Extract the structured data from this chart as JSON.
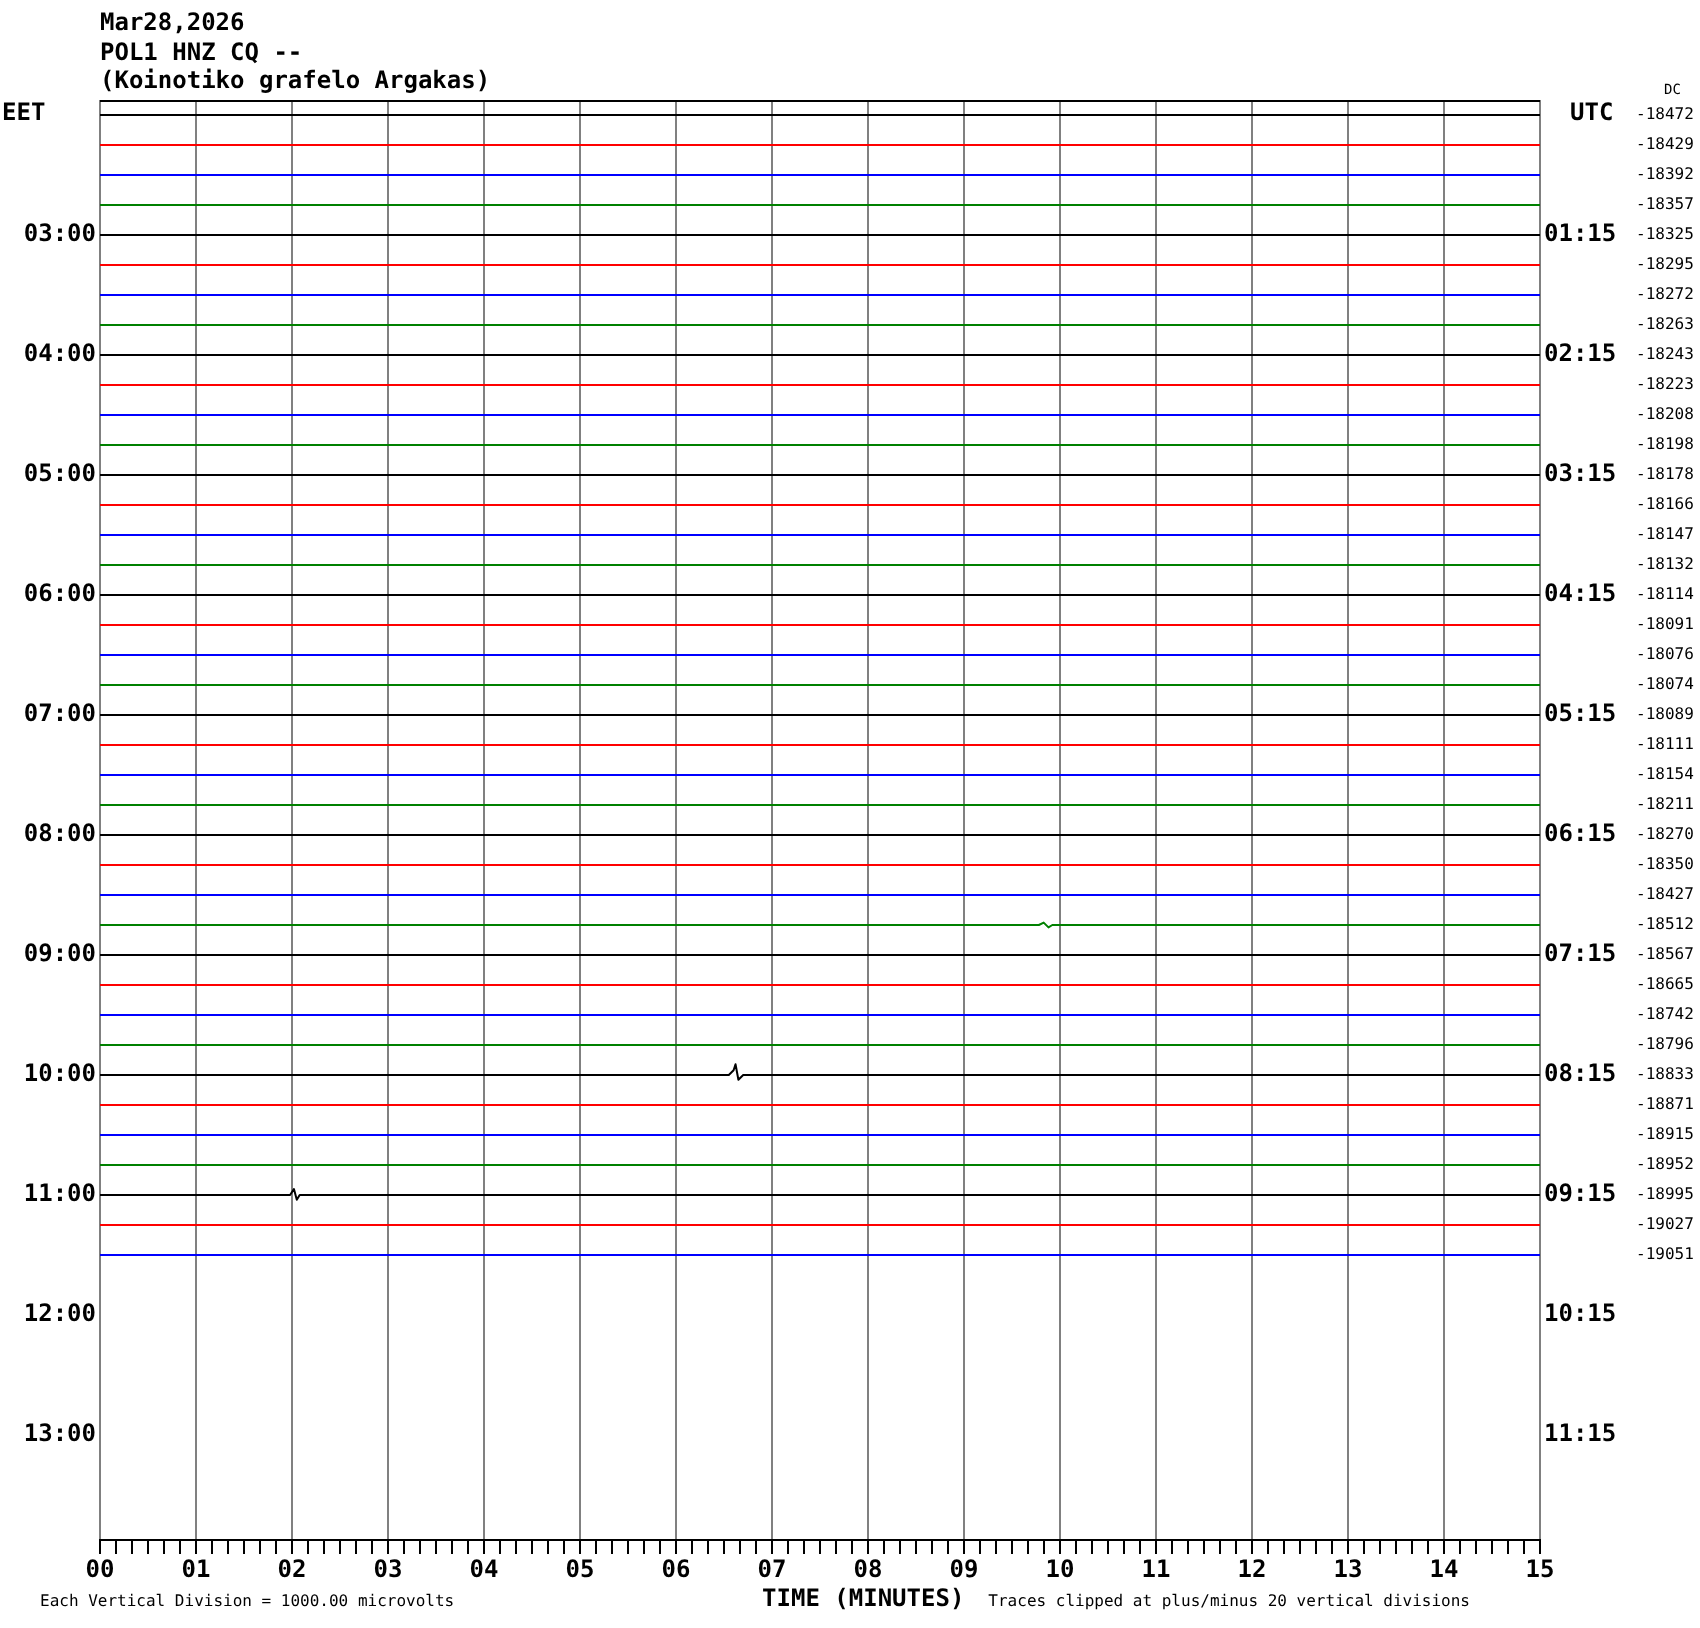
{
  "chart_data": {
    "type": "line",
    "title": "Mar28,2026",
    "subtitle": "POL1 HNZ CQ --\n(Koinotiko grafelo Argakas)",
    "xlabel": "TIME (MINUTES)",
    "ylabel": "EET",
    "y2label": "UTC",
    "annotations": [
      "Each Vertical Division = 1000.00 microvolts",
      "Traces clipped at plus/minus 20 vertical divisions",
      "DC",
      "-18472",
      "-18429",
      "-18392",
      "-18357",
      "-18325",
      "-18295",
      "-18272",
      "-18263",
      "-18243",
      "-18223",
      "-18208",
      "-18198",
      "-18178",
      "-18166",
      "-18147",
      "-18132",
      "-18114",
      "-18091",
      "-18076",
      "-18074",
      "-18089",
      "-18111",
      "-18154",
      "-18211",
      "-18270",
      "-18350",
      "-18427",
      "-18512",
      "-18567",
      "-18665",
      "-18742",
      "-18796",
      "-18833",
      "-18871",
      "-18915",
      "-18952",
      "-18995",
      "-19027",
      "-19051"
    ],
    "xlim": [
      0,
      15
    ],
    "xticks": [
      {
        "value": 0,
        "label": "00"
      },
      {
        "value": 0.167,
        "label": null
      },
      {
        "value": 0.333,
        "label": null
      },
      {
        "value": 0.5,
        "label": null
      },
      {
        "value": 0.667,
        "label": null
      },
      {
        "value": 0.833,
        "label": null
      },
      {
        "value": 1,
        "label": "01"
      },
      {
        "value": 1.167,
        "label": null
      },
      {
        "value": 1.333,
        "label": null
      },
      {
        "value": 1.5,
        "label": null
      },
      {
        "value": 1.667,
        "label": null
      },
      {
        "value": 1.833,
        "label": null
      },
      {
        "value": 2,
        "label": "02"
      },
      {
        "value": 2.167,
        "label": null
      },
      {
        "value": 2.333,
        "label": null
      },
      {
        "value": 2.5,
        "label": null
      },
      {
        "value": 2.667,
        "label": null
      },
      {
        "value": 2.833,
        "label": null
      },
      {
        "value": 3,
        "label": "03"
      },
      {
        "value": 3.167,
        "label": null
      },
      {
        "value": 3.333,
        "label": null
      },
      {
        "value": 3.5,
        "label": null
      },
      {
        "value": 3.667,
        "label": null
      },
      {
        "value": 3.833,
        "label": null
      },
      {
        "value": 4,
        "label": "04"
      },
      {
        "value": 4.167,
        "label": null
      },
      {
        "value": 4.333,
        "label": null
      },
      {
        "value": 4.5,
        "label": null
      },
      {
        "value": 4.667,
        "label": null
      },
      {
        "value": 4.833,
        "label": null
      },
      {
        "value": 5,
        "label": "05"
      },
      {
        "value": 5.167,
        "label": null
      },
      {
        "value": 5.333,
        "label": null
      },
      {
        "value": 5.5,
        "label": null
      },
      {
        "value": 5.667,
        "label": null
      },
      {
        "value": 5.833,
        "label": null
      },
      {
        "value": 6,
        "label": "06"
      },
      {
        "value": 6.167,
        "label": null
      },
      {
        "value": 6.333,
        "label": null
      },
      {
        "value": 6.5,
        "label": null
      },
      {
        "value": 6.667,
        "label": null
      },
      {
        "value": 6.833,
        "label": null
      },
      {
        "value": 7,
        "label": "07"
      },
      {
        "value": 7.167,
        "label": null
      },
      {
        "value": 7.333,
        "label": null
      },
      {
        "value": 7.5,
        "label": null
      },
      {
        "value": 7.667,
        "label": null
      },
      {
        "value": 7.833,
        "label": null
      },
      {
        "value": 8,
        "label": "08"
      },
      {
        "value": 8.167,
        "label": null
      },
      {
        "value": 8.333,
        "label": null
      },
      {
        "value": 8.5,
        "label": null
      },
      {
        "value": 8.667,
        "label": null
      },
      {
        "value": 8.833,
        "label": null
      },
      {
        "value": 9,
        "label": "09"
      },
      {
        "value": 9.167,
        "label": null
      },
      {
        "value": 9.333,
        "label": null
      },
      {
        "value": 9.5,
        "label": null
      },
      {
        "value": 9.667,
        "label": null
      },
      {
        "value": 9.833,
        "label": null
      },
      {
        "value": 10,
        "label": "10"
      },
      {
        "value": 10.167,
        "label": null
      },
      {
        "value": 10.333,
        "label": null
      },
      {
        "value": 10.5,
        "label": null
      },
      {
        "value": 10.667,
        "label": null
      },
      {
        "value": 10.833,
        "label": null
      },
      {
        "value": 11,
        "label": "11"
      },
      {
        "value": 11.167,
        "label": null
      },
      {
        "value": 11.333,
        "label": null
      },
      {
        "value": 11.5,
        "label": null
      },
      {
        "value": 11.667,
        "label": null
      },
      {
        "value": 11.833,
        "label": null
      },
      {
        "value": 12,
        "label": "12"
      },
      {
        "value": 12.167,
        "label": null
      },
      {
        "value": 12.333,
        "label": null
      },
      {
        "value": 12.5,
        "label": null
      },
      {
        "value": 12.667,
        "label": null
      },
      {
        "value": 12.833,
        "label": null
      },
      {
        "value": 13,
        "label": "13"
      },
      {
        "value": 13.167,
        "label": null
      },
      {
        "value": 13.333,
        "label": null
      },
      {
        "value": 13.5,
        "label": null
      },
      {
        "value": 13.667,
        "label": null
      },
      {
        "value": 13.833,
        "label": null
      },
      {
        "value": 14,
        "label": "14"
      },
      {
        "value": 14.167,
        "label": null
      },
      {
        "value": 14.333,
        "label": null
      },
      {
        "value": 14.5,
        "label": null
      },
      {
        "value": 14.667,
        "label": null
      },
      {
        "value": 14.833,
        "label": null
      },
      {
        "value": 15,
        "label": "15"
      }
    ],
    "ylim": [
      13.875,
      1.875
    ],
    "yticks": [
      {
        "value": 3,
        "label": "03:00"
      },
      {
        "value": 4,
        "label": "04:00"
      },
      {
        "value": 5,
        "label": "05:00"
      },
      {
        "value": 6,
        "label": "06:00"
      },
      {
        "value": 7,
        "label": "07:00"
      },
      {
        "value": 8,
        "label": "08:00"
      },
      {
        "value": 9,
        "label": "09:00"
      },
      {
        "value": 10,
        "label": "10:00"
      },
      {
        "value": 11,
        "label": "11:00"
      },
      {
        "value": 12,
        "label": "12:00"
      },
      {
        "value": 13,
        "label": "13:00"
      }
    ],
    "y2lim": [
      12.125,
      0.125
    ],
    "y2ticks": [
      {
        "value": 1.25,
        "label": "01:15"
      },
      {
        "value": 2.25,
        "label": "02:15"
      },
      {
        "value": 3.25,
        "label": "03:15"
      },
      {
        "value": 4.25,
        "label": "04:15"
      },
      {
        "value": 5.25,
        "label": "05:15"
      },
      {
        "value": 6.25,
        "label": "06:15"
      },
      {
        "value": 7.25,
        "label": "07:15"
      },
      {
        "value": 8.25,
        "label": "08:15"
      },
      {
        "value": 9.25,
        "label": "09:15"
      },
      {
        "value": 10.25,
        "label": "10:15"
      },
      {
        "value": 11.25,
        "label": "11:15"
      }
    ],
    "grid": "x",
    "series": [
      {
        "color": "#000000",
        "x": [
          0,
          15
        ],
        "values": [
          2,
          2
        ]
      },
      {
        "color": "#ff0000",
        "x": [
          0,
          15
        ],
        "values": [
          2.25,
          2.25
        ]
      },
      {
        "color": "#0000ff",
        "x": [
          0,
          15
        ],
        "values": [
          2.5,
          2.5
        ]
      },
      {
        "color": "#008000",
        "x": [
          0,
          15
        ],
        "values": [
          2.75,
          2.75
        ]
      },
      {
        "color": "#000000",
        "x": [
          0,
          15
        ],
        "values": [
          3,
          3
        ]
      },
      {
        "color": "#ff0000",
        "x": [
          0,
          15
        ],
        "values": [
          3.25,
          3.25
        ]
      },
      {
        "color": "#0000ff",
        "x": [
          0,
          15
        ],
        "values": [
          3.5,
          3.5
        ]
      },
      {
        "color": "#008000",
        "x": [
          0,
          15
        ],
        "values": [
          3.75,
          3.75
        ]
      },
      {
        "color": "#000000",
        "x": [
          0,
          15
        ],
        "values": [
          4,
          4
        ]
      },
      {
        "color": "#ff0000",
        "x": [
          0,
          15
        ],
        "values": [
          4.25,
          4.25
        ]
      },
      {
        "color": "#0000ff",
        "x": [
          0,
          15
        ],
        "values": [
          4.5,
          4.5
        ]
      },
      {
        "color": "#008000",
        "x": [
          0,
          15
        ],
        "values": [
          4.75,
          4.75
        ]
      },
      {
        "color": "#000000",
        "x": [
          0,
          15
        ],
        "values": [
          5,
          5
        ]
      },
      {
        "color": "#ff0000",
        "x": [
          0,
          15
        ],
        "values": [
          5.25,
          5.25
        ]
      },
      {
        "color": "#0000ff",
        "x": [
          0,
          15
        ],
        "values": [
          5.5,
          5.5
        ]
      },
      {
        "color": "#008000",
        "x": [
          0,
          15
        ],
        "values": [
          5.75,
          5.75
        ]
      },
      {
        "color": "#000000",
        "x": [
          0,
          15
        ],
        "values": [
          6,
          6
        ]
      },
      {
        "color": "#ff0000",
        "x": [
          0,
          15
        ],
        "values": [
          6.25,
          6.25
        ]
      },
      {
        "color": "#0000ff",
        "x": [
          0,
          15
        ],
        "values": [
          6.5,
          6.5
        ]
      },
      {
        "color": "#008000",
        "x": [
          0,
          15
        ],
        "values": [
          6.75,
          6.75
        ]
      },
      {
        "color": "#000000",
        "x": [
          0,
          15
        ],
        "values": [
          7,
          7
        ]
      },
      {
        "color": "#ff0000",
        "x": [
          0,
          15
        ],
        "values": [
          7.25,
          7.25
        ]
      },
      {
        "color": "#0000ff",
        "x": [
          0,
          15
        ],
        "values": [
          7.5,
          7.5
        ]
      },
      {
        "color": "#008000",
        "x": [
          0,
          15
        ],
        "values": [
          7.75,
          7.75
        ]
      },
      {
        "color": "#000000",
        "x": [
          0,
          15
        ],
        "values": [
          8,
          8
        ]
      },
      {
        "color": "#ff0000",
        "x": [
          0,
          15
        ],
        "values": [
          8.25,
          8.25
        ]
      },
      {
        "color": "#0000ff",
        "x": [
          0,
          15
        ],
        "values": [
          8.5,
          8.5
        ]
      },
      {
        "color": "#008000",
        "x": [
          0,
          9.78,
          9.83,
          9.88,
          9.92,
          15
        ],
        "values": [
          8.75,
          8.75,
          8.73,
          8.77,
          8.75,
          8.75
        ]
      },
      {
        "color": "#000000",
        "x": [
          0,
          15
        ],
        "values": [
          9,
          9
        ]
      },
      {
        "color": "#ff0000",
        "x": [
          0,
          15
        ],
        "values": [
          9.25,
          9.25
        ]
      },
      {
        "color": "#0000ff",
        "x": [
          0,
          15
        ],
        "values": [
          9.5,
          9.5
        ]
      },
      {
        "color": "#008000",
        "x": [
          0,
          15
        ],
        "values": [
          9.75,
          9.75
        ]
      },
      {
        "color": "#000000",
        "x": [
          0,
          6.55,
          6.6,
          6.62,
          6.65,
          6.7,
          15
        ],
        "values": [
          10,
          10,
          9.96,
          9.91,
          10.04,
          10,
          10
        ]
      },
      {
        "color": "#ff0000",
        "x": [
          0,
          15
        ],
        "values": [
          10.25,
          10.25
        ]
      },
      {
        "color": "#0000ff",
        "x": [
          0,
          15
        ],
        "values": [
          10.5,
          10.5
        ]
      },
      {
        "color": "#008000",
        "x": [
          0,
          15
        ],
        "values": [
          10.75,
          10.75
        ]
      },
      {
        "color": "#000000",
        "x": [
          0,
          1.98,
          2.02,
          2.05,
          2.08,
          15
        ],
        "values": [
          11,
          11,
          10.95,
          11.04,
          11,
          11
        ]
      },
      {
        "color": "#ff0000",
        "x": [
          0,
          15
        ],
        "values": [
          11.25,
          11.25
        ]
      },
      {
        "color": "#0000ff",
        "x": [
          0,
          15
        ],
        "values": [
          11.5,
          11.5
        ]
      }
    ]
  }
}
